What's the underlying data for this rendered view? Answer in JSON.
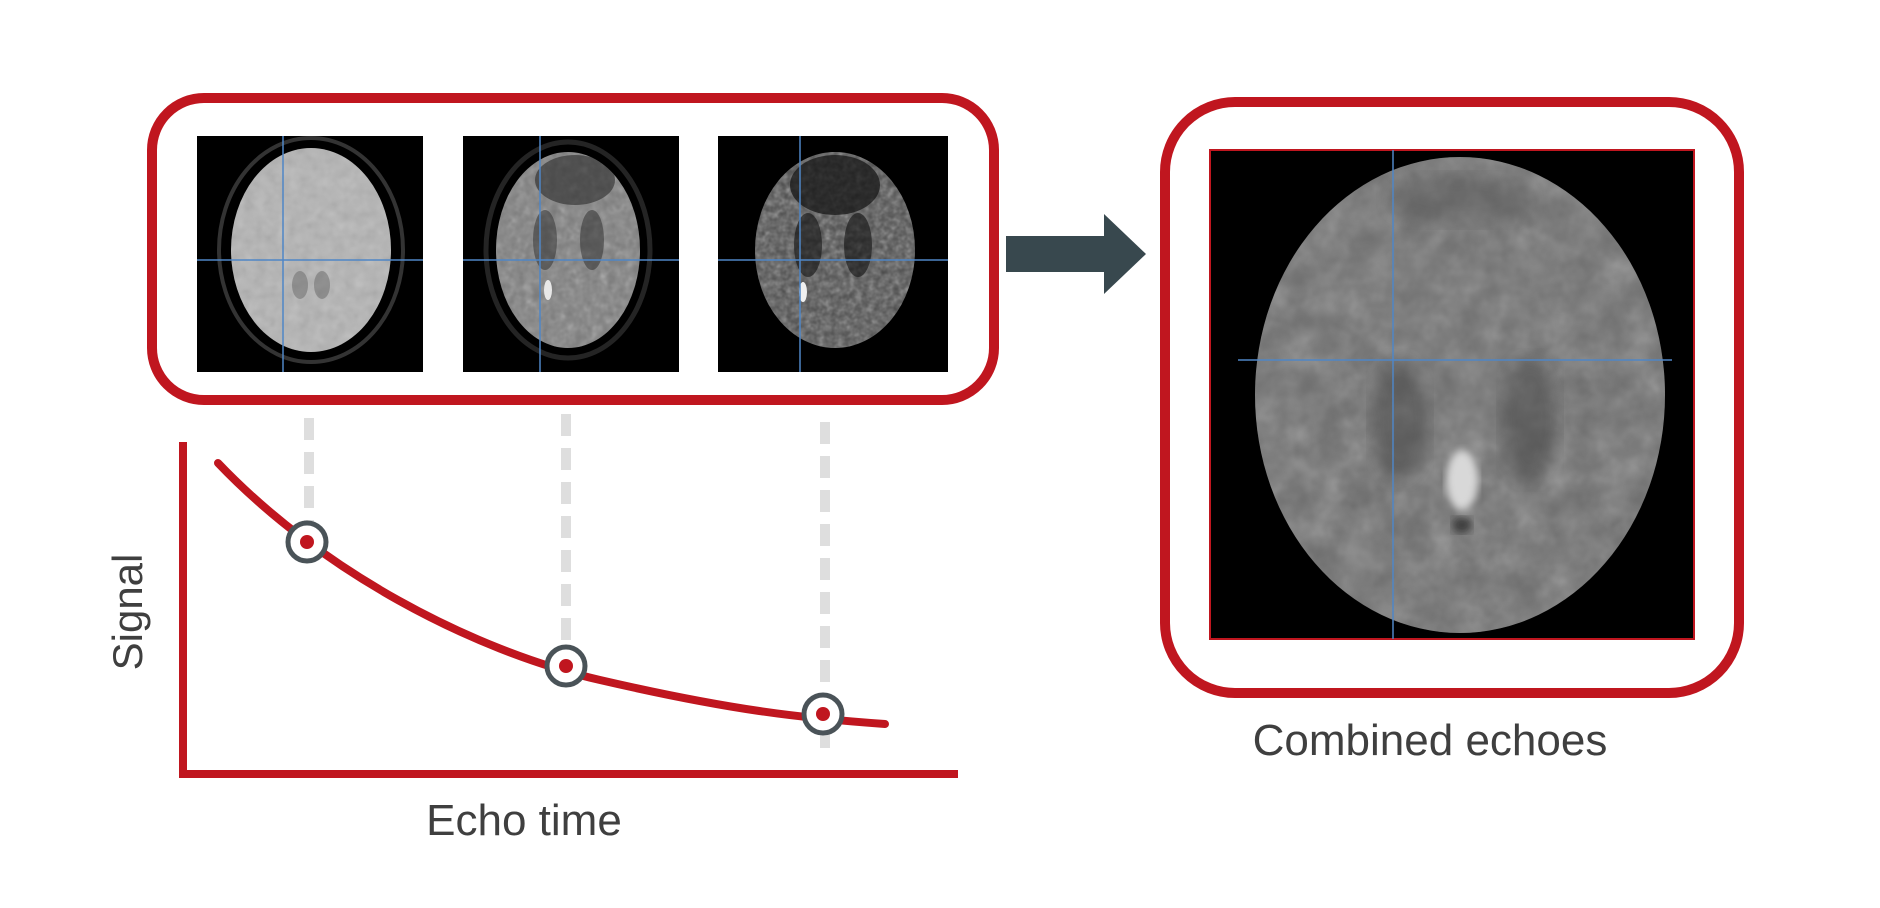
{
  "labels": {
    "y_axis": "Signal",
    "x_axis": "Echo time",
    "output": "Combined echoes"
  },
  "colors": {
    "frame": "#c0161f",
    "arrow": "#38484e",
    "marker": "#4a5358",
    "guide": "#dedede",
    "crosshair": "#4f86c6",
    "text": "#3f3f3f"
  },
  "echo_images": [
    {
      "name": "echo-1",
      "brightness": 0.82,
      "noise": 0.18
    },
    {
      "name": "echo-2",
      "brightness": 0.55,
      "noise": 0.3
    },
    {
      "name": "echo-3",
      "brightness": 0.35,
      "noise": 0.42
    }
  ],
  "decay_curve": {
    "type": "exponential-decay",
    "marked_points": 3
  }
}
